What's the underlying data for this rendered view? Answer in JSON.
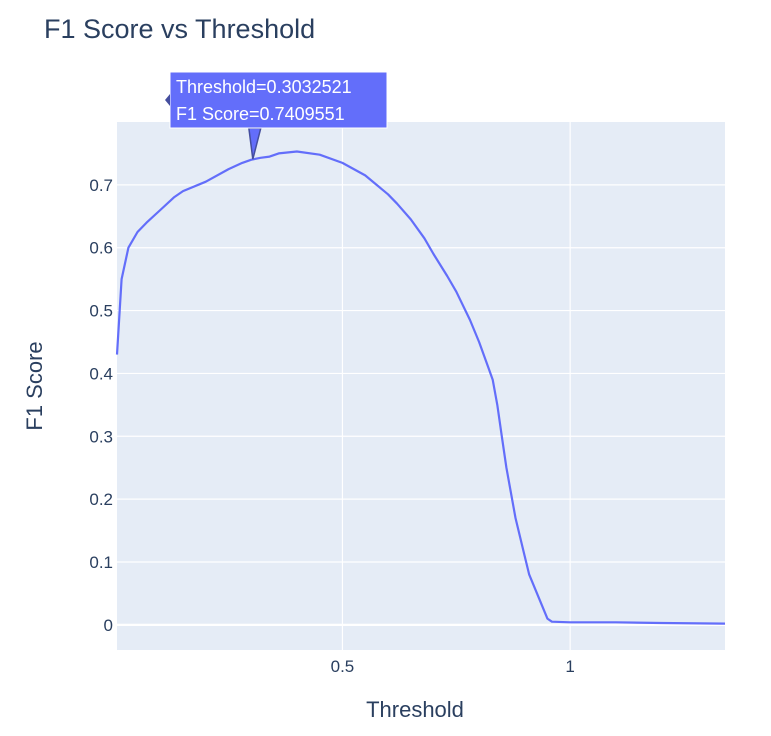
{
  "chart_data": {
    "type": "line",
    "title": "F1 Score vs Threshold",
    "xlabel": "Threshold",
    "ylabel": "F1 Score",
    "xlim": [
      0.005,
      1.34
    ],
    "ylim": [
      -0.04,
      0.8
    ],
    "x_ticks": [
      0.5,
      1
    ],
    "y_ticks": [
      0,
      0.1,
      0.2,
      0.3,
      0.4,
      0.5,
      0.6,
      0.7
    ],
    "x_tick_labels": [
      "0.5",
      "1"
    ],
    "y_tick_labels": [
      "0",
      "0.1",
      "0.2",
      "0.3",
      "0.4",
      "0.5",
      "0.6",
      "0.7"
    ],
    "grid": true,
    "legend": "none",
    "series": [
      {
        "color": "#636efa",
        "x": [
          0.005,
          0.015,
          0.03,
          0.05,
          0.07,
          0.1,
          0.13,
          0.15,
          0.2,
          0.25,
          0.28,
          0.3,
          0.32,
          0.34,
          0.36,
          0.4,
          0.45,
          0.5,
          0.55,
          0.6,
          0.62,
          0.65,
          0.68,
          0.7,
          0.73,
          0.75,
          0.78,
          0.8,
          0.82,
          0.83,
          0.84,
          0.85,
          0.86,
          0.88,
          0.9,
          0.91,
          0.95,
          0.96,
          1.0,
          1.1,
          1.2,
          1.34
        ],
        "y": [
          0.43,
          0.55,
          0.6,
          0.625,
          0.64,
          0.66,
          0.68,
          0.69,
          0.705,
          0.725,
          0.735,
          0.74,
          0.743,
          0.745,
          0.75,
          0.753,
          0.748,
          0.735,
          0.715,
          0.685,
          0.67,
          0.645,
          0.615,
          0.59,
          0.555,
          0.53,
          0.485,
          0.45,
          0.41,
          0.39,
          0.35,
          0.3,
          0.25,
          0.17,
          0.11,
          0.08,
          0.01,
          0.005,
          0.004,
          0.004,
          0.003,
          0.002
        ]
      }
    ],
    "hover": {
      "line1": "Threshold=0.3032521",
      "line2": "F1 Score=0.7409551",
      "x": 0.3032521,
      "y": 0.7409551
    }
  }
}
